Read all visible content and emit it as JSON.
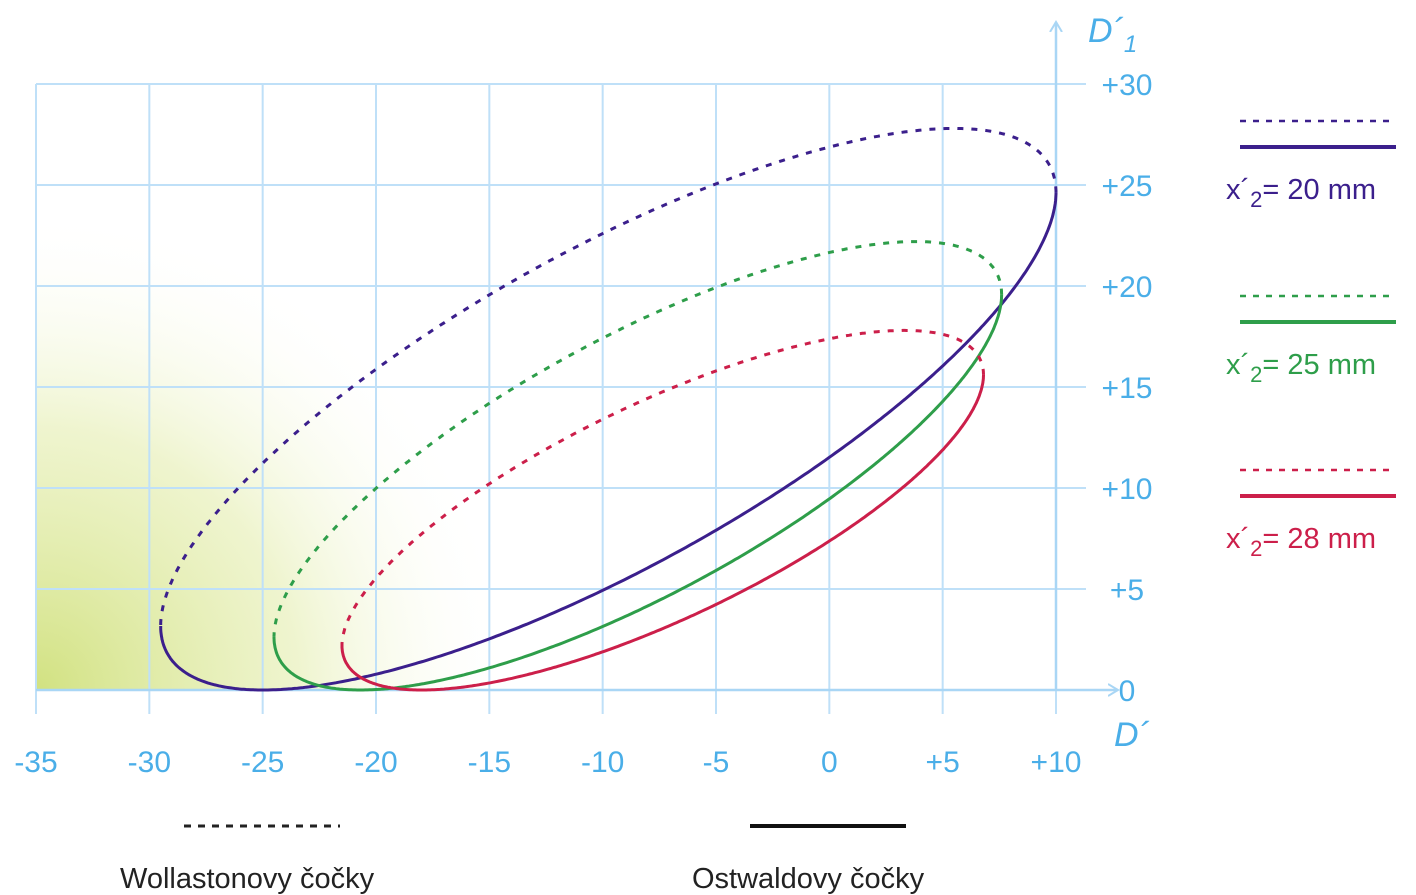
{
  "chart_data": {
    "type": "line",
    "xlabel": "D´",
    "ylabel": "D´1",
    "xlim": [
      -35,
      10
    ],
    "ylim": [
      0,
      30
    ],
    "x_ticks": [
      "-35",
      "-30",
      "-25",
      "-20",
      "-15",
      "-10",
      "-5",
      "0",
      "+5",
      "+10"
    ],
    "y_ticks": [
      "0",
      "+5",
      "+10",
      "+15",
      "+20",
      "+25",
      "+30"
    ],
    "grid": true,
    "series": [
      {
        "name": "x´2 = 20 mm",
        "legend_label": "x´2= 20 mm",
        "color": "#3b1f8c",
        "ellipse": {
          "x_min": -29.5,
          "x_max": 10,
          "y_min": 0,
          "y_max": 27.8,
          "x_at_bottom": -25,
          "x_at_top": 5.5,
          "y_at_left": 2.3,
          "y_at_right": 24.8
        }
      },
      {
        "name": "x´2 = 25 mm",
        "legend_label": "x´2= 25 mm",
        "color": "#2e9e4a",
        "ellipse": {
          "x_min": -24.5,
          "x_max": 7.6,
          "y_min": 0,
          "y_max": 22.2,
          "x_at_bottom": -20.5,
          "x_at_top": 4,
          "y_at_left": 2,
          "y_at_right": 19.7
        }
      },
      {
        "name": "x´2 = 28 mm",
        "legend_label": "x´2= 28 mm",
        "color": "#cc1f4a",
        "ellipse": {
          "x_min": -21.5,
          "x_max": 6.8,
          "y_min": 0,
          "y_max": 17.8,
          "x_at_bottom": -18,
          "x_at_top": 3.3,
          "y_at_left": 1.5,
          "y_at_right": 16.2
        }
      }
    ],
    "line_styles": [
      {
        "style": "dotted",
        "label": "Wollastonovy čočky"
      },
      {
        "style": "solid",
        "label": "Ostwaldovy čočky"
      }
    ]
  },
  "colors": {
    "grid": "#bfe0f8",
    "axis": "#a9d6f5",
    "tick_text": "#4aaee8",
    "shade": "#cfe07a"
  }
}
